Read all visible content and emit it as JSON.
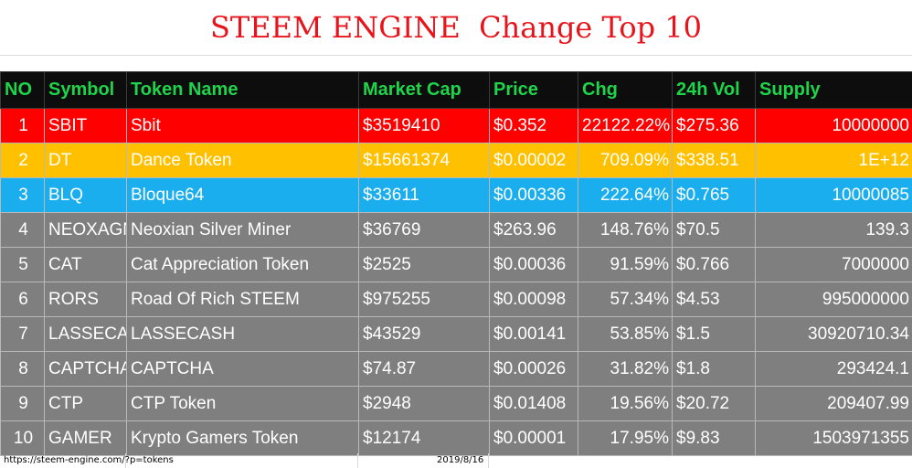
{
  "title": "STEEM ENGINE  Change Top 10",
  "headers": [
    "NO",
    "Symbol",
    "Token Name",
    "Market Cap",
    "Price",
    "Chg",
    "24h Vol",
    "Supply"
  ],
  "rows": [
    {
      "no": "1",
      "symbol": "SBIT",
      "name": "Sbit",
      "market_cap": "$3519410",
      "price": "$0.352",
      "chg": "22122.22%",
      "vol": "$275.36",
      "supply": "10000000",
      "color": "#ff0000"
    },
    {
      "no": "2",
      "symbol": "DT",
      "name": "Dance Token",
      "market_cap": "$15661374",
      "price": "$0.00002",
      "chg": "709.09%",
      "vol": "$338.51",
      "supply": "1E+12",
      "color": "#ffc000"
    },
    {
      "no": "3",
      "symbol": "BLQ",
      "name": "Bloque64",
      "market_cap": "$33611",
      "price": "$0.00336",
      "chg": "222.64%",
      "vol": "$0.765",
      "supply": "10000085",
      "color": "#1aaeef"
    },
    {
      "no": "4",
      "symbol": "NEOXAGN",
      "name": "Neoxian Silver Miner",
      "market_cap": "$36769",
      "price": "$263.96",
      "chg": "148.76%",
      "vol": "$70.5",
      "supply": "139.3",
      "color": "#7f7f7f"
    },
    {
      "no": "5",
      "symbol": "CAT",
      "name": "Cat Appreciation Token",
      "market_cap": "$2525",
      "price": "$0.00036",
      "chg": "91.59%",
      "vol": "$0.766",
      "supply": "7000000",
      "color": "#7f7f7f"
    },
    {
      "no": "6",
      "symbol": "RORS",
      "name": "Road Of Rich STEEM",
      "market_cap": "$975255",
      "price": "$0.00098",
      "chg": "57.34%",
      "vol": "$4.53",
      "supply": "995000000",
      "color": "#7f7f7f"
    },
    {
      "no": "7",
      "symbol": "LASSECASH",
      "name": "LASSECASH",
      "market_cap": "$43529",
      "price": "$0.00141",
      "chg": "53.85%",
      "vol": "$1.5",
      "supply": "30920710.34",
      "color": "#7f7f7f"
    },
    {
      "no": "8",
      "symbol": "CAPTCHA",
      "name": "CAPTCHA",
      "market_cap": "$74.87",
      "price": "$0.00026",
      "chg": "31.82%",
      "vol": "$1.8",
      "supply": "293424.1",
      "color": "#7f7f7f"
    },
    {
      "no": "9",
      "symbol": "CTP",
      "name": "CTP Token",
      "market_cap": "$2948",
      "price": "$0.01408",
      "chg": "19.56%",
      "vol": "$20.72",
      "supply": "209407.99",
      "color": "#7f7f7f"
    },
    {
      "no": "10",
      "symbol": "GAMER",
      "name": "Krypto Gamers Token",
      "market_cap": "$12174",
      "price": "$0.00001",
      "chg": "17.95%",
      "vol": "$9.83",
      "supply": "1503971355",
      "color": "#7f7f7f"
    }
  ],
  "footer": {
    "url": "https://steem-engine.com/?p=tokens",
    "date": "2019/8/16"
  },
  "colors": {
    "title": "#e8141c",
    "header_bg": "#0d0d0d",
    "header_text": "#1fd44a",
    "rank1": "#ff0000",
    "rank2": "#ffc000",
    "rank3": "#1aaeef",
    "rest": "#7f7f7f"
  }
}
